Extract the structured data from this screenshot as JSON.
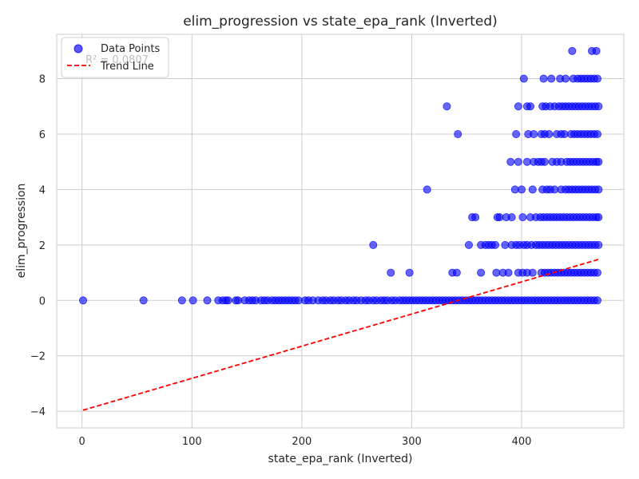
{
  "chart_data": {
    "type": "scatter",
    "title": "elim_progression vs state_epa_rank (Inverted)",
    "xlabel": "state_epa_rank (Inverted)",
    "ylabel": "elim_progression",
    "xlim": [
      -23,
      493
    ],
    "ylim": [
      -4.6,
      9.6
    ],
    "xticks": [
      0,
      100,
      200,
      300,
      400
    ],
    "yticks": [
      -4,
      -2,
      0,
      2,
      4,
      6,
      8
    ],
    "grid": true,
    "legend": {
      "placement": "top-left",
      "entries": [
        {
          "label": "Data Points",
          "marker": "circle",
          "color": "#0000ff"
        },
        {
          "label": "Trend Line",
          "marker": "dashed-line",
          "color": "#ff0000"
        }
      ]
    },
    "annotation": "R² = 0.0807",
    "colors": {
      "points": "#0000ff",
      "trend": "#ff0000",
      "grid": "#cccccc",
      "spine": "#cccccc"
    },
    "trend_line": {
      "x": [
        1,
        470
      ],
      "y": [
        -3.96,
        1.48
      ]
    },
    "series": [
      {
        "name": "Data Points",
        "points": [
          [
            1,
            0
          ],
          [
            56,
            0
          ],
          [
            91,
            0
          ],
          [
            101,
            0
          ],
          [
            114,
            0
          ],
          [
            124,
            0
          ],
          [
            128,
            0
          ],
          [
            131,
            0
          ],
          [
            133,
            0
          ],
          [
            140,
            0
          ],
          [
            142,
            0
          ],
          [
            148,
            0
          ],
          [
            152,
            0
          ],
          [
            155,
            0
          ],
          [
            158,
            0
          ],
          [
            163,
            0
          ],
          [
            166,
            0
          ],
          [
            169,
            0
          ],
          [
            173,
            0
          ],
          [
            176,
            0
          ],
          [
            179,
            0
          ],
          [
            182,
            0
          ],
          [
            185,
            0
          ],
          [
            188,
            0
          ],
          [
            191,
            0
          ],
          [
            194,
            0
          ],
          [
            197,
            0
          ],
          [
            203,
            0
          ],
          [
            206,
            0
          ],
          [
            210,
            0
          ],
          [
            215,
            0
          ],
          [
            219,
            0
          ],
          [
            222,
            0
          ],
          [
            226,
            0
          ],
          [
            229,
            0
          ],
          [
            233,
            0
          ],
          [
            236,
            0
          ],
          [
            240,
            0
          ],
          [
            243,
            0
          ],
          [
            247,
            0
          ],
          [
            250,
            0
          ],
          [
            254,
            0
          ],
          [
            258,
            0
          ],
          [
            261,
            0
          ],
          [
            265,
            0
          ],
          [
            268,
            0
          ],
          [
            272,
            0
          ],
          [
            275,
            0
          ],
          [
            278,
            0
          ],
          [
            282,
            0
          ],
          [
            285,
            0
          ],
          [
            289,
            0
          ],
          [
            292,
            0
          ],
          [
            295,
            0
          ],
          [
            298,
            0
          ],
          [
            301,
            0
          ],
          [
            304,
            0
          ],
          [
            307,
            0
          ],
          [
            310,
            0
          ],
          [
            313,
            0
          ],
          [
            316,
            0
          ],
          [
            319,
            0
          ],
          [
            322,
            0
          ],
          [
            325,
            0
          ],
          [
            328,
            0
          ],
          [
            331,
            0
          ],
          [
            334,
            0
          ],
          [
            337,
            0
          ],
          [
            340,
            0
          ],
          [
            343,
            0
          ],
          [
            346,
            0
          ],
          [
            349,
            0
          ],
          [
            352,
            0
          ],
          [
            355,
            0
          ],
          [
            358,
            0
          ],
          [
            361,
            0
          ],
          [
            364,
            0
          ],
          [
            367,
            0
          ],
          [
            370,
            0
          ],
          [
            373,
            0
          ],
          [
            376,
            0
          ],
          [
            379,
            0
          ],
          [
            382,
            0
          ],
          [
            385,
            0
          ],
          [
            388,
            0
          ],
          [
            391,
            0
          ],
          [
            394,
            0
          ],
          [
            397,
            0
          ],
          [
            400,
            0
          ],
          [
            403,
            0
          ],
          [
            406,
            0
          ],
          [
            409,
            0
          ],
          [
            412,
            0
          ],
          [
            415,
            0
          ],
          [
            418,
            0
          ],
          [
            421,
            0
          ],
          [
            424,
            0
          ],
          [
            427,
            0
          ],
          [
            430,
            0
          ],
          [
            433,
            0
          ],
          [
            436,
            0
          ],
          [
            439,
            0
          ],
          [
            442,
            0
          ],
          [
            445,
            0
          ],
          [
            448,
            0
          ],
          [
            451,
            0
          ],
          [
            454,
            0
          ],
          [
            457,
            0
          ],
          [
            460,
            0
          ],
          [
            463,
            0
          ],
          [
            466,
            0
          ],
          [
            469,
            0
          ],
          [
            281,
            1
          ],
          [
            298,
            1
          ],
          [
            337,
            1
          ],
          [
            341,
            1
          ],
          [
            363,
            1
          ],
          [
            377,
            1
          ],
          [
            383,
            1
          ],
          [
            388,
            1
          ],
          [
            397,
            1
          ],
          [
            401,
            1
          ],
          [
            405,
            1
          ],
          [
            410,
            1
          ],
          [
            418,
            1
          ],
          [
            421,
            1
          ],
          [
            424,
            1
          ],
          [
            427,
            1
          ],
          [
            430,
            1
          ],
          [
            433,
            1
          ],
          [
            436,
            1
          ],
          [
            439,
            1
          ],
          [
            442,
            1
          ],
          [
            445,
            1
          ],
          [
            448,
            1
          ],
          [
            451,
            1
          ],
          [
            454,
            1
          ],
          [
            457,
            1
          ],
          [
            460,
            1
          ],
          [
            463,
            1
          ],
          [
            466,
            1
          ],
          [
            469,
            1
          ],
          [
            265,
            2
          ],
          [
            352,
            2
          ],
          [
            363,
            2
          ],
          [
            367,
            2
          ],
          [
            370,
            2
          ],
          [
            373,
            2
          ],
          [
            376,
            2
          ],
          [
            385,
            2
          ],
          [
            391,
            2
          ],
          [
            395,
            2
          ],
          [
            398,
            2
          ],
          [
            402,
            2
          ],
          [
            405,
            2
          ],
          [
            409,
            2
          ],
          [
            413,
            2
          ],
          [
            416,
            2
          ],
          [
            419,
            2
          ],
          [
            422,
            2
          ],
          [
            425,
            2
          ],
          [
            428,
            2
          ],
          [
            431,
            2
          ],
          [
            434,
            2
          ],
          [
            437,
            2
          ],
          [
            440,
            2
          ],
          [
            443,
            2
          ],
          [
            446,
            2
          ],
          [
            449,
            2
          ],
          [
            452,
            2
          ],
          [
            455,
            2
          ],
          [
            458,
            2
          ],
          [
            461,
            2
          ],
          [
            464,
            2
          ],
          [
            467,
            2
          ],
          [
            470,
            2
          ],
          [
            355,
            3
          ],
          [
            358,
            3
          ],
          [
            378,
            3
          ],
          [
            380,
            3
          ],
          [
            386,
            3
          ],
          [
            391,
            3
          ],
          [
            401,
            3
          ],
          [
            408,
            3
          ],
          [
            413,
            3
          ],
          [
            417,
            3
          ],
          [
            420,
            3
          ],
          [
            423,
            3
          ],
          [
            426,
            3
          ],
          [
            429,
            3
          ],
          [
            432,
            3
          ],
          [
            435,
            3
          ],
          [
            438,
            3
          ],
          [
            441,
            3
          ],
          [
            444,
            3
          ],
          [
            447,
            3
          ],
          [
            450,
            3
          ],
          [
            453,
            3
          ],
          [
            456,
            3
          ],
          [
            459,
            3
          ],
          [
            462,
            3
          ],
          [
            465,
            3
          ],
          [
            468,
            3
          ],
          [
            470,
            3
          ],
          [
            314,
            4
          ],
          [
            394,
            4
          ],
          [
            400,
            4
          ],
          [
            410,
            4
          ],
          [
            419,
            4
          ],
          [
            423,
            4
          ],
          [
            426,
            4
          ],
          [
            430,
            4
          ],
          [
            436,
            4
          ],
          [
            440,
            4
          ],
          [
            443,
            4
          ],
          [
            446,
            4
          ],
          [
            449,
            4
          ],
          [
            452,
            4
          ],
          [
            455,
            4
          ],
          [
            458,
            4
          ],
          [
            461,
            4
          ],
          [
            464,
            4
          ],
          [
            467,
            4
          ],
          [
            470,
            4
          ],
          [
            390,
            5
          ],
          [
            397,
            5
          ],
          [
            405,
            5
          ],
          [
            411,
            5
          ],
          [
            415,
            5
          ],
          [
            418,
            5
          ],
          [
            421,
            5
          ],
          [
            428,
            5
          ],
          [
            432,
            5
          ],
          [
            436,
            5
          ],
          [
            441,
            5
          ],
          [
            444,
            5
          ],
          [
            447,
            5
          ],
          [
            450,
            5
          ],
          [
            453,
            5
          ],
          [
            456,
            5
          ],
          [
            459,
            5
          ],
          [
            462,
            5
          ],
          [
            465,
            5
          ],
          [
            468,
            5
          ],
          [
            470,
            5
          ],
          [
            342,
            6
          ],
          [
            395,
            6
          ],
          [
            406,
            6
          ],
          [
            411,
            6
          ],
          [
            418,
            6
          ],
          [
            421,
            6
          ],
          [
            425,
            6
          ],
          [
            432,
            6
          ],
          [
            436,
            6
          ],
          [
            439,
            6
          ],
          [
            445,
            6
          ],
          [
            448,
            6
          ],
          [
            451,
            6
          ],
          [
            454,
            6
          ],
          [
            457,
            6
          ],
          [
            460,
            6
          ],
          [
            463,
            6
          ],
          [
            466,
            6
          ],
          [
            469,
            6
          ],
          [
            332,
            7
          ],
          [
            397,
            7
          ],
          [
            405,
            7
          ],
          [
            408,
            7
          ],
          [
            419,
            7
          ],
          [
            422,
            7
          ],
          [
            426,
            7
          ],
          [
            430,
            7
          ],
          [
            434,
            7
          ],
          [
            437,
            7
          ],
          [
            440,
            7
          ],
          [
            443,
            7
          ],
          [
            446,
            7
          ],
          [
            449,
            7
          ],
          [
            452,
            7
          ],
          [
            455,
            7
          ],
          [
            458,
            7
          ],
          [
            461,
            7
          ],
          [
            464,
            7
          ],
          [
            467,
            7
          ],
          [
            470,
            7
          ],
          [
            402,
            8
          ],
          [
            420,
            8
          ],
          [
            427,
            8
          ],
          [
            435,
            8
          ],
          [
            440,
            8
          ],
          [
            447,
            8
          ],
          [
            451,
            8
          ],
          [
            454,
            8
          ],
          [
            457,
            8
          ],
          [
            460,
            8
          ],
          [
            463,
            8
          ],
          [
            466,
            8
          ],
          [
            469,
            8
          ],
          [
            446,
            9
          ],
          [
            464,
            9
          ],
          [
            468,
            9
          ]
        ]
      }
    ]
  }
}
